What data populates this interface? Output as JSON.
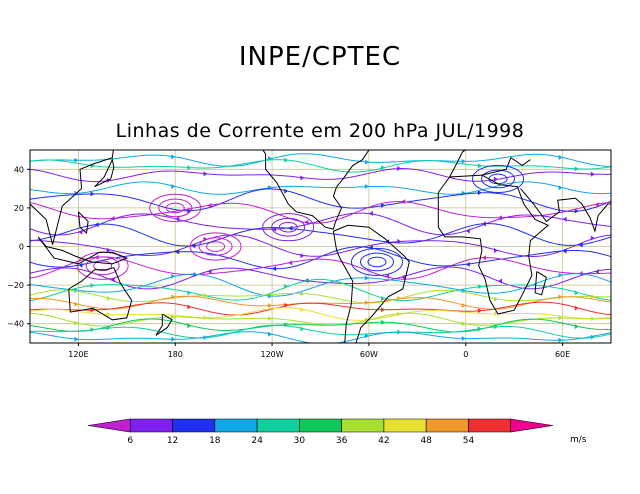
{
  "title": "INPE/CPTEC",
  "subtitle": "Linhas de Corrente em 200 hPa JUL/1998",
  "map": {
    "projection": "cylindrical",
    "lon_range": [
      90,
      450
    ],
    "lat_range": [
      -50,
      50
    ],
    "lat_ticks": [
      {
        "value": 40,
        "label": "40"
      },
      {
        "value": 20,
        "label": "20"
      },
      {
        "value": 0,
        "label": "0"
      },
      {
        "value": -20,
        "label": "−20"
      },
      {
        "value": -40,
        "label": "−40"
      }
    ],
    "lon_ticks": [
      {
        "value": 120,
        "label": "120E"
      },
      {
        "value": 180,
        "label": "180"
      },
      {
        "value": 240,
        "label": "120W"
      },
      {
        "value": 300,
        "label": "60W"
      },
      {
        "value": 360,
        "label": "0"
      },
      {
        "value": 420,
        "label": "60E"
      }
    ],
    "grid_color": "#c8c08a"
  },
  "colorbar": {
    "units": "m/s",
    "labels": [
      "6",
      "12",
      "18",
      "24",
      "30",
      "36",
      "42",
      "48",
      "54"
    ],
    "colors": [
      "#c020d0",
      "#8020f0",
      "#2030f0",
      "#10a8e8",
      "#10d0a0",
      "#10c858",
      "#a8e030",
      "#e8e030",
      "#f09828",
      "#f03030",
      "#f00090"
    ]
  },
  "streamlines": [
    {
      "lat": 45,
      "color": "#10a8e8"
    },
    {
      "lat": 42,
      "color": "#10d0a0"
    },
    {
      "lat": 37,
      "color": "#8020f0"
    },
    {
      "lat": 30,
      "color": "#10a8e8"
    },
    {
      "lat": 24,
      "color": "#2030f0"
    },
    {
      "lat": 18,
      "color": "#c020d0"
    },
    {
      "lat": 12,
      "color": "#8020f0"
    },
    {
      "lat": 6,
      "color": "#2030f0"
    },
    {
      "lat": 0,
      "color": "#8020f0"
    },
    {
      "lat": -6,
      "color": "#2030f0"
    },
    {
      "lat": -11,
      "color": "#c020d0"
    },
    {
      "lat": -16,
      "color": "#8020f0"
    },
    {
      "lat": -20,
      "color": "#10a8e8"
    },
    {
      "lat": -23,
      "color": "#10d0a0"
    },
    {
      "lat": -26,
      "color": "#a8e030"
    },
    {
      "lat": -29,
      "color": "#f09828"
    },
    {
      "lat": -32,
      "color": "#f03030"
    },
    {
      "lat": -35,
      "color": "#e8e030"
    },
    {
      "lat": -38,
      "color": "#a8e030"
    },
    {
      "lat": -41,
      "color": "#10c858"
    },
    {
      "lat": -44,
      "color": "#10d0a0"
    },
    {
      "lat": -47,
      "color": "#10a8e8"
    }
  ],
  "vortices": [
    {
      "lon": 180,
      "lat": 20,
      "color": "#c020d0"
    },
    {
      "lon": 205,
      "lat": 0,
      "color": "#c020d0"
    },
    {
      "lon": 135,
      "lat": -10,
      "color": "#c020d0"
    },
    {
      "lon": 305,
      "lat": -8,
      "color": "#2030f0"
    },
    {
      "lon": 250,
      "lat": 10,
      "color": "#8020f0"
    },
    {
      "lon": 380,
      "lat": 35,
      "color": "#2030f0"
    }
  ]
}
